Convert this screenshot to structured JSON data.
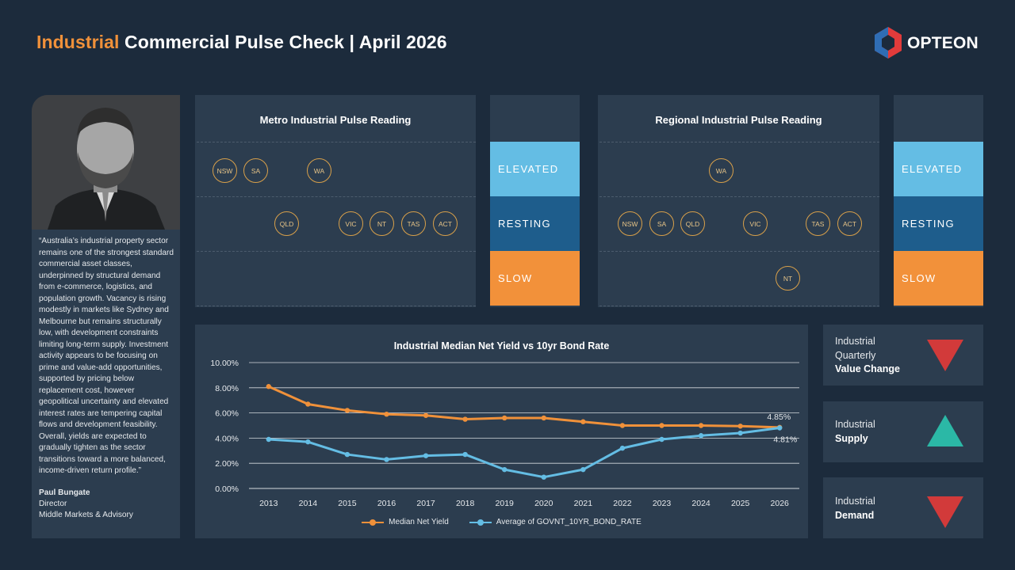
{
  "header": {
    "title_accent": "Industrial",
    "title_rest": " Commercial Pulse Check | April 2026",
    "logo_text": "OPTEON",
    "colors": {
      "accent": "#f0913a",
      "background": "#1c2b3c",
      "panel": "#2c3d4f"
    }
  },
  "quote": {
    "text": "“Australia’s industrial property sector remains one of the strongest standard commercial asset classes, underpinned by structural demand from e-commerce, logistics, and population growth. Vacancy is rising modestly in markets like Sydney and Melbourne but remains structurally low, with development constraints limiting long-term supply. Investment activity appears to be focusing on prime and value-add opportunities, supported by pricing below replacement cost, however geopolitical uncertainty and elevated interest rates are tempering capital flows and development feasibility. Overall, yields are expected to gradually tighten as the sector transitions toward a more balanced, income-driven return profile.”",
    "author_name": "Paul Bungate",
    "author_role": "Director",
    "author_dept": "Middle Markets & Advisory"
  },
  "metro": {
    "title": "Metro Industrial Pulse Reading",
    "elevated": [
      "NSW",
      "SA",
      "WA"
    ],
    "resting": [
      "QLD",
      "VIC",
      "NT",
      "TAS",
      "ACT"
    ],
    "slow": []
  },
  "regional": {
    "title": "Regional Industrial Pulse Reading",
    "elevated": [
      "WA"
    ],
    "resting": [
      "NSW",
      "SA",
      "QLD",
      "VIC",
      "TAS",
      "ACT"
    ],
    "slow": [
      "NT"
    ]
  },
  "status_labels": {
    "elevated": "ELEVATED",
    "resting": "RESTING",
    "slow": "SLOW"
  },
  "indicators": {
    "value_change": {
      "line1": "Industrial",
      "line2": "Quarterly",
      "line3": "Value Change",
      "direction": "down"
    },
    "supply": {
      "line1": "Industrial",
      "line2": "Supply",
      "direction": "up"
    },
    "demand": {
      "line1": "Industrial",
      "line2": "Demand",
      "direction": "down"
    }
  },
  "chart_data": {
    "type": "line",
    "title": "Industrial Median Net Yield vs 10yr Bond Rate",
    "categories": [
      "2013",
      "2014",
      "2015",
      "2016",
      "2017",
      "2018",
      "2019",
      "2020",
      "2021",
      "2022",
      "2023",
      "2024",
      "2025",
      "2026"
    ],
    "series": [
      {
        "name": "Median Net Yield",
        "color": "#f0913a",
        "values": [
          8.1,
          6.7,
          6.2,
          5.9,
          5.8,
          5.5,
          5.6,
          5.6,
          5.3,
          5.0,
          5.0,
          5.0,
          4.95,
          4.85
        ]
      },
      {
        "name": "Average of GOVNT_10YR_BOND_RATE",
        "color": "#64bde4",
        "values": [
          3.9,
          3.7,
          2.7,
          2.3,
          2.6,
          2.7,
          1.5,
          0.9,
          1.5,
          3.2,
          3.9,
          4.2,
          4.4,
          4.81
        ]
      }
    ],
    "y_ticks": [
      "0.00%",
      "2.00%",
      "4.00%",
      "6.00%",
      "8.00%",
      "10.00%"
    ],
    "ylim": [
      0,
      10
    ],
    "data_labels": {
      "yield_last": "4.85%",
      "bond_last": "4.81%"
    },
    "grid": true,
    "legend": "bottom"
  }
}
